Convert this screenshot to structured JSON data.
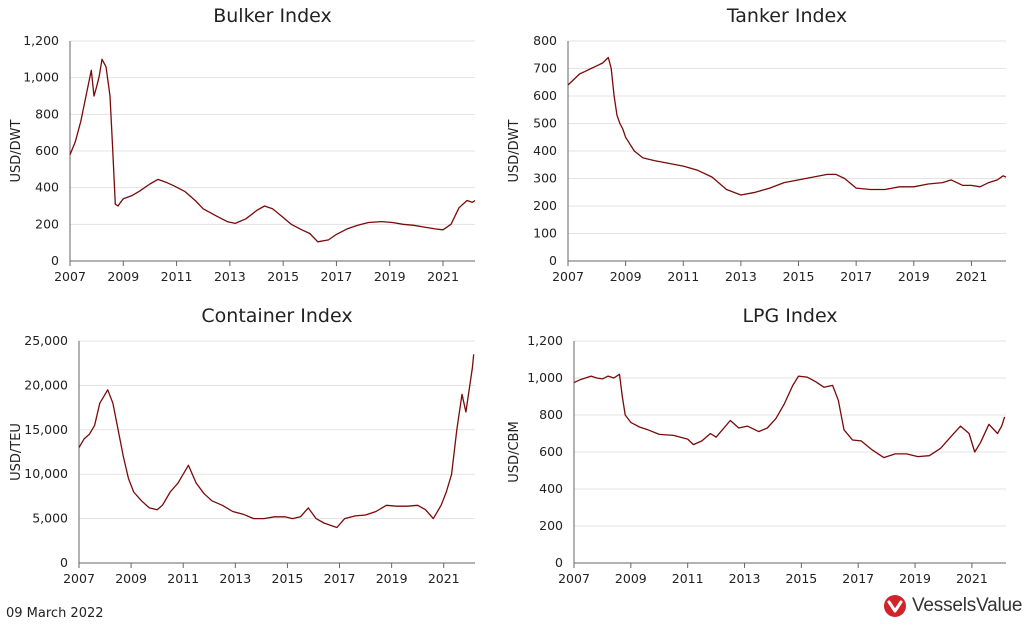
{
  "footer": {
    "date": "09 March 2022"
  },
  "brand": {
    "name": "VesselsValue",
    "color": "#d2232a"
  },
  "colors": {
    "series": "#7a0a0a",
    "grid": "#e3e3e3"
  },
  "chart_data": [
    {
      "type": "line",
      "title": "Bulker Index",
      "ylabel": "USD/DWT",
      "xlim": [
        2007,
        2022.2
      ],
      "ylim": [
        0,
        1200
      ],
      "xticks": [
        "2007",
        "2009",
        "2011",
        "2013",
        "2015",
        "2017",
        "2019",
        "2021"
      ],
      "yticks": [
        "0",
        "200",
        "400",
        "600",
        "800",
        "1,000",
        "1,200"
      ],
      "grid": true,
      "series": [
        {
          "x": [
            2007.0,
            2007.2,
            2007.4,
            2007.6,
            2007.8,
            2007.9,
            2008.0,
            2008.1,
            2008.2,
            2008.35,
            2008.5,
            2008.6,
            2008.7,
            2008.8,
            2008.9,
            2009.0,
            2009.3,
            2009.6,
            2010.0,
            2010.3,
            2010.6,
            2010.9,
            2011.3,
            2011.7,
            2012.0,
            2012.5,
            2012.9,
            2013.2,
            2013.6,
            2014.0,
            2014.3,
            2014.6,
            2014.9,
            2015.3,
            2015.7,
            2016.0,
            2016.3,
            2016.7,
            2017.0,
            2017.4,
            2017.8,
            2018.2,
            2018.7,
            2019.1,
            2019.5,
            2019.9,
            2020.3,
            2020.7,
            2021.0,
            2021.3,
            2021.6,
            2021.9,
            2022.1,
            2022.2
          ],
          "y": [
            580,
            650,
            760,
            900,
            1040,
            900,
            950,
            1010,
            1100,
            1060,
            900,
            620,
            310,
            300,
            320,
            340,
            355,
            380,
            420,
            445,
            430,
            410,
            380,
            330,
            285,
            245,
            215,
            205,
            230,
            275,
            300,
            285,
            250,
            200,
            170,
            150,
            105,
            115,
            145,
            175,
            195,
            210,
            215,
            210,
            200,
            195,
            185,
            175,
            170,
            200,
            290,
            330,
            320,
            330
          ]
        }
      ]
    },
    {
      "type": "line",
      "title": "Tanker Index",
      "ylabel": "USD/DWT",
      "xlim": [
        2007,
        2022.2
      ],
      "ylim": [
        0,
        800
      ],
      "xticks": [
        "2007",
        "2009",
        "2011",
        "2013",
        "2015",
        "2017",
        "2019",
        "2021"
      ],
      "yticks": [
        "0",
        "100",
        "200",
        "300",
        "400",
        "500",
        "600",
        "700",
        "800"
      ],
      "grid": true,
      "series": [
        {
          "x": [
            2007.0,
            2007.2,
            2007.4,
            2007.6,
            2007.8,
            2008.0,
            2008.2,
            2008.4,
            2008.5,
            2008.6,
            2008.7,
            2008.8,
            2008.9,
            2009.0,
            2009.3,
            2009.6,
            2010.0,
            2010.5,
            2011.0,
            2011.5,
            2012.0,
            2012.5,
            2013.0,
            2013.5,
            2014.0,
            2014.5,
            2015.0,
            2015.5,
            2016.0,
            2016.3,
            2016.6,
            2017.0,
            2017.5,
            2018.0,
            2018.5,
            2019.0,
            2019.5,
            2020.0,
            2020.3,
            2020.7,
            2021.0,
            2021.3,
            2021.6,
            2021.9,
            2022.1,
            2022.2
          ],
          "y": [
            640,
            660,
            680,
            690,
            700,
            710,
            720,
            740,
            700,
            600,
            530,
            500,
            480,
            450,
            400,
            375,
            365,
            355,
            345,
            330,
            305,
            260,
            240,
            250,
            265,
            285,
            295,
            305,
            315,
            315,
            300,
            265,
            260,
            260,
            270,
            270,
            280,
            285,
            295,
            275,
            275,
            270,
            285,
            295,
            310,
            305
          ]
        }
      ]
    },
    {
      "type": "line",
      "title": "Container Index",
      "ylabel": "USD/TEU",
      "xlim": [
        2007,
        2022.2
      ],
      "ylim": [
        0,
        25000
      ],
      "xticks": [
        "2007",
        "2009",
        "2011",
        "2013",
        "2015",
        "2017",
        "2019",
        "2021"
      ],
      "yticks": [
        "0",
        "5,000",
        "10,000",
        "15,000",
        "20,000",
        "25,000"
      ],
      "grid": true,
      "series": [
        {
          "x": [
            2007.0,
            2007.2,
            2007.4,
            2007.6,
            2007.8,
            2008.0,
            2008.1,
            2008.3,
            2008.5,
            2008.7,
            2008.9,
            2009.1,
            2009.4,
            2009.7,
            2010.0,
            2010.2,
            2010.5,
            2010.8,
            2011.0,
            2011.2,
            2011.5,
            2011.8,
            2012.1,
            2012.5,
            2012.9,
            2013.3,
            2013.7,
            2014.1,
            2014.5,
            2014.9,
            2015.2,
            2015.5,
            2015.8,
            2016.1,
            2016.4,
            2016.7,
            2016.9,
            2017.2,
            2017.6,
            2018.0,
            2018.4,
            2018.8,
            2019.2,
            2019.6,
            2020.0,
            2020.3,
            2020.6,
            2020.9,
            2021.1,
            2021.3,
            2021.5,
            2021.7,
            2021.85,
            2022.0,
            2022.1,
            2022.15
          ],
          "y": [
            13000,
            14000,
            14500,
            15500,
            18000,
            19000,
            19500,
            18000,
            15000,
            12000,
            9500,
            8000,
            7000,
            6200,
            6000,
            6500,
            8000,
            9000,
            10000,
            11000,
            9000,
            7800,
            7000,
            6500,
            5800,
            5500,
            5000,
            5000,
            5200,
            5200,
            5000,
            5200,
            6200,
            5000,
            4500,
            4200,
            4000,
            5000,
            5300,
            5400,
            5800,
            6500,
            6400,
            6400,
            6500,
            6000,
            5000,
            6500,
            8000,
            10000,
            15000,
            19000,
            17000,
            20000,
            22000,
            23500
          ]
        }
      ]
    },
    {
      "type": "line",
      "title": "LPG Index",
      "ylabel": "USD/CBM",
      "xlim": [
        2007,
        2022.2
      ],
      "ylim": [
        0,
        1200
      ],
      "xticks": [
        "2007",
        "2009",
        "2011",
        "2013",
        "2015",
        "2017",
        "2019",
        "2021"
      ],
      "yticks": [
        "0",
        "200",
        "400",
        "600",
        "800",
        "1,000",
        "1,200"
      ],
      "grid": true,
      "series": [
        {
          "x": [
            2007.0,
            2007.2,
            2007.4,
            2007.6,
            2007.8,
            2008.0,
            2008.2,
            2008.4,
            2008.6,
            2008.7,
            2008.8,
            2009.0,
            2009.3,
            2009.6,
            2010.0,
            2010.5,
            2011.0,
            2011.2,
            2011.5,
            2011.8,
            2012.0,
            2012.5,
            2012.8,
            2013.1,
            2013.5,
            2013.8,
            2014.1,
            2014.4,
            2014.7,
            2014.9,
            2015.2,
            2015.5,
            2015.8,
            2016.1,
            2016.3,
            2016.5,
            2016.8,
            2017.1,
            2017.5,
            2017.9,
            2018.3,
            2018.7,
            2019.1,
            2019.5,
            2019.9,
            2020.3,
            2020.6,
            2020.9,
            2021.1,
            2021.3,
            2021.6,
            2021.9,
            2022.05,
            2022.15
          ],
          "y": [
            975,
            990,
            1000,
            1010,
            1000,
            995,
            1010,
            1000,
            1020,
            900,
            800,
            760,
            735,
            720,
            695,
            690,
            670,
            640,
            660,
            700,
            680,
            770,
            730,
            740,
            710,
            730,
            780,
            860,
            960,
            1010,
            1005,
            980,
            950,
            960,
            880,
            720,
            665,
            660,
            610,
            570,
            590,
            590,
            575,
            580,
            620,
            690,
            740,
            700,
            600,
            650,
            750,
            700,
            740,
            790
          ]
        }
      ]
    }
  ]
}
